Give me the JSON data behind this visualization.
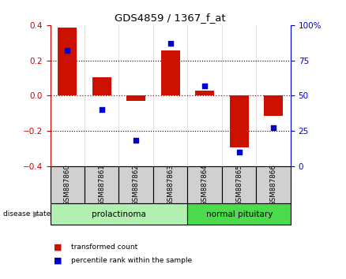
{
  "title": "GDS4859 / 1367_f_at",
  "samples": [
    "GSM887860",
    "GSM887861",
    "GSM887862",
    "GSM887863",
    "GSM887864",
    "GSM887865",
    "GSM887866"
  ],
  "transformed_count": [
    0.385,
    0.105,
    -0.03,
    0.255,
    0.03,
    -0.295,
    -0.115
  ],
  "percentile_rank": [
    82,
    40,
    18,
    87,
    57,
    10,
    27
  ],
  "groups": [
    {
      "label": "prolactinoma",
      "indices": [
        0,
        1,
        2,
        3
      ],
      "color": "#b2f0b2"
    },
    {
      "label": "normal pituitary",
      "indices": [
        4,
        5,
        6
      ],
      "color": "#4cdb4c"
    }
  ],
  "bar_color": "#cc1100",
  "dot_color": "#0000cc",
  "ylim_left": [
    -0.4,
    0.4
  ],
  "ylim_right": [
    0,
    100
  ],
  "yticks_left": [
    -0.4,
    -0.2,
    0.0,
    0.2,
    0.4
  ],
  "yticks_right": [
    0,
    25,
    50,
    75,
    100
  ],
  "yticklabels_right": [
    "0",
    "25",
    "50",
    "75",
    "100%"
  ],
  "left_axis_color": "#cc0000",
  "right_axis_color": "#0000cc",
  "hline_zero_color": "#cc0000",
  "bg_color": "#ffffff",
  "legend_items": [
    {
      "label": "transformed count",
      "color": "#cc1100"
    },
    {
      "label": "percentile rank within the sample",
      "color": "#0000cc"
    }
  ],
  "group_label_prefix": "disease state",
  "bar_width": 0.55
}
